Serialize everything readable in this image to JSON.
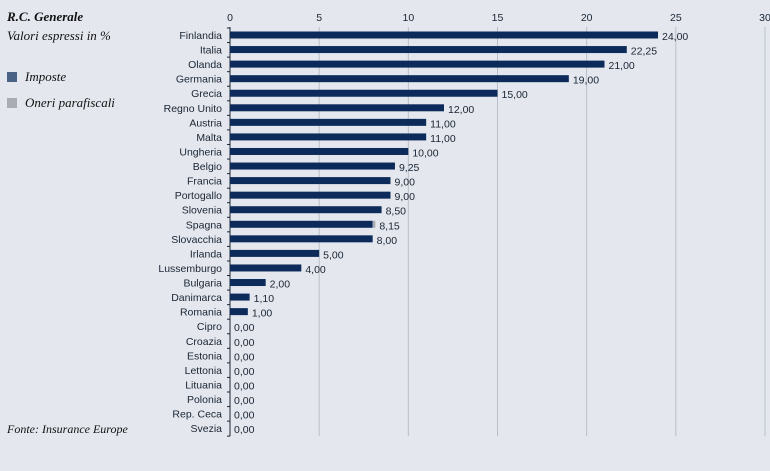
{
  "chart_data": {
    "type": "bar",
    "orientation": "horizontal",
    "stacked": true,
    "title": "R.C. Generale",
    "subtitle": "Valori espressi in  %",
    "source": "Fonte: Insurance Europe",
    "xlim": [
      0,
      30
    ],
    "xticks": [
      "0",
      "5",
      "10",
      "15",
      "20",
      "25",
      "30"
    ],
    "grid": true,
    "legend_position": "left",
    "categories": [
      "Finlandia",
      "Italia",
      "Olanda",
      "Germania",
      "Grecia",
      "Regno Unito",
      "Austria",
      "Malta",
      "Ungheria",
      "Belgio",
      "Francia",
      "Portogallo",
      "Slovenia",
      "Spagna",
      "Slovacchia",
      "Irlanda",
      "Lussemburgo",
      "Bulgaria",
      "Danimarca",
      "Romania",
      "Cipro",
      "Croazia",
      "Estonia",
      "Lettonia",
      "Lituania",
      "Polonia",
      "Rep. Ceca",
      "Svezia"
    ],
    "series": [
      {
        "name": "Imposte",
        "color": "#0d2b5a",
        "legend_color": "#4a6283",
        "values": [
          24,
          22.25,
          21,
          19,
          15,
          12,
          11,
          11,
          10,
          9.25,
          9,
          9,
          8.5,
          8,
          8,
          5,
          4,
          2,
          1.1,
          1,
          0,
          0,
          0,
          0,
          0,
          0,
          0,
          0
        ]
      },
      {
        "name": "Oneri parafiscali",
        "color": "#a9adb3",
        "values": [
          0,
          0,
          0,
          0,
          0,
          0,
          0,
          0,
          0,
          0,
          0,
          0,
          0,
          0.15,
          0,
          0,
          0,
          0,
          0,
          0,
          0,
          0,
          0,
          0,
          0,
          0,
          0,
          0
        ]
      }
    ],
    "data_labels": [
      "24,00",
      "22,25",
      "21,00",
      "19,00",
      "15,00",
      "12,00",
      "11,00",
      "11,00",
      "10,00",
      "9,25",
      "9,00",
      "9,00",
      "8,50",
      "8,15",
      "8,00",
      "5,00",
      "4,00",
      "2,00",
      "1,10",
      "1,00",
      "0,00",
      "0,00",
      "0,00",
      "0,00",
      "0,00",
      "0,00",
      "0,00",
      "0,00"
    ]
  }
}
